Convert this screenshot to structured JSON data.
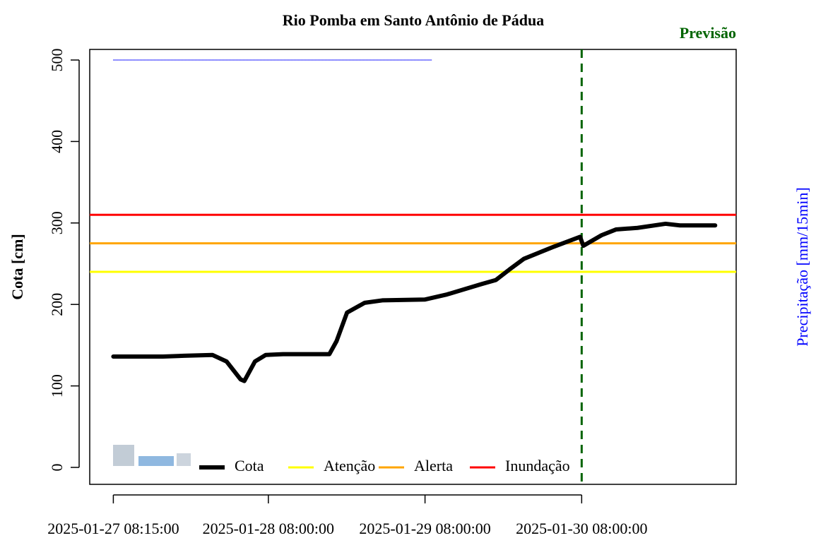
{
  "chart_data": {
    "type": "line",
    "title": "Rio Pomba em Santo Antônio de Pádua",
    "y_label": "Cota [cm]",
    "y2_label": "Precipitação [mm/15min]",
    "x": [
      "2025-01-27 08:15:00",
      "2025-01-27 15:51:00",
      "2025-01-27 19:04:00",
      "2025-01-27 23:26:00",
      "2025-01-28 01:36:00",
      "2025-01-28 03:45:00",
      "2025-01-28 04:19:00",
      "2025-01-28 05:57:00",
      "2025-01-28 07:36:00",
      "2025-01-28 10:15:00",
      "2025-01-28 17:21:00",
      "2025-01-28 18:27:00",
      "2025-01-28 20:03:00",
      "2025-01-28 22:45:00",
      "2025-01-29 01:27:00",
      "2025-01-29 07:57:00",
      "2025-01-29 11:15:00",
      "2025-01-29 16:39:00",
      "2025-01-29 18:51:00",
      "2025-01-29 20:57:00",
      "2025-01-29 23:09:00",
      "2025-01-30 03:27:00",
      "2025-01-30 07:45:00",
      "2025-01-30 08:15:00",
      "2025-01-30 11:03:00",
      "2025-01-30 13:15:00",
      "2025-01-30 16:33:00",
      "2025-01-30 20:51:00",
      "2025-01-30 23:03:00",
      "2025-01-31 04:27:00"
    ],
    "series": [
      {
        "name": "Cota",
        "color": "#000000",
        "values": [
          136,
          136,
          137,
          138,
          130,
          108,
          106,
          130,
          138,
          139,
          139,
          155,
          190,
          202,
          205,
          206,
          212,
          225,
          230,
          243,
          256,
          270,
          283,
          272,
          285,
          292,
          294,
          299,
          297,
          297
        ]
      },
      {
        "axis": "y2",
        "color": "#0000ff",
        "x": [
          "2025-01-27 08:15:00",
          "2025-01-29 09:00:00"
        ],
        "values": [
          0,
          0
        ]
      }
    ],
    "thresholds": [
      {
        "name": "Atenção",
        "color": "#ffff00",
        "value": 240
      },
      {
        "name": "Alerta",
        "color": "#ffa500",
        "value": 275
      },
      {
        "name": "Inundação",
        "color": "#ff0000",
        "value": 310
      }
    ],
    "forecast": {
      "label": "Previsão",
      "x": "2025-01-30 08:00:00",
      "color": "#006400"
    },
    "xlim": [
      "2025-01-27 04:38:00",
      "2025-01-31 07:40:00"
    ],
    "xticks": [
      "2025-01-27 08:15:00",
      "2025-01-28 08:00:00",
      "2025-01-29 08:00:00",
      "2025-01-30 08:00:00"
    ],
    "ylim": [
      -20.8,
      513
    ],
    "yticks": [
      0,
      100,
      200,
      300,
      400,
      500
    ],
    "y2lim": [
      20,
      -0.5
    ]
  }
}
